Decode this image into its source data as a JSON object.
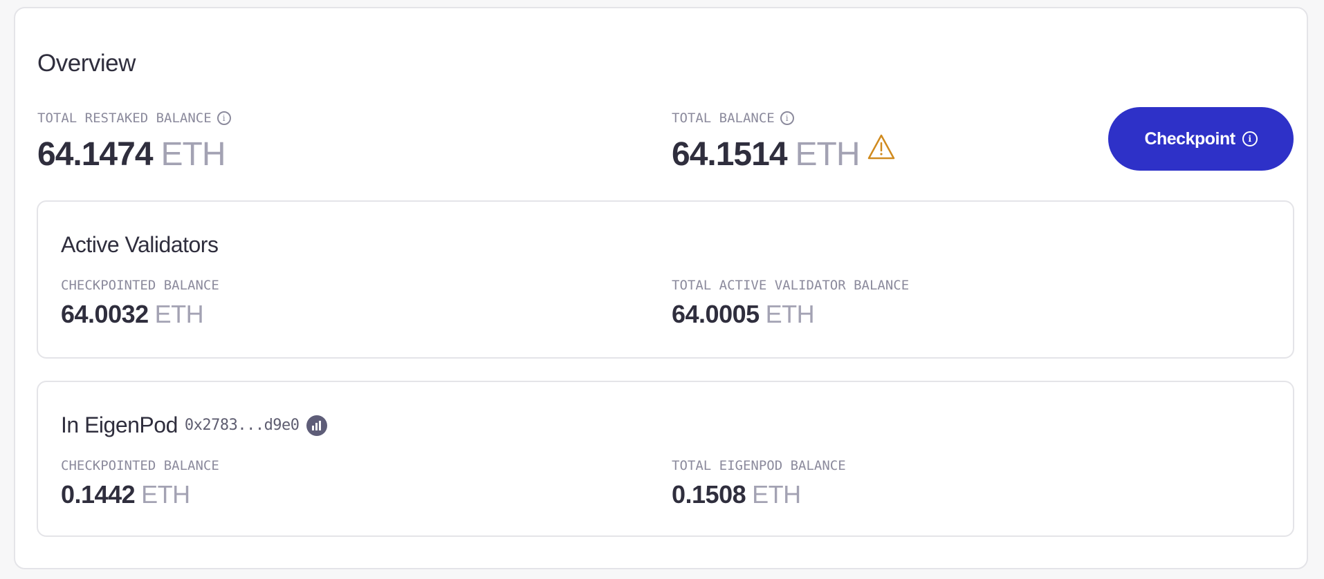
{
  "overview": {
    "title": "Overview",
    "total_restaked": {
      "label": "TOTAL RESTAKED BALANCE",
      "value": "64.1474",
      "unit": "ETH"
    },
    "total_balance": {
      "label": "TOTAL BALANCE",
      "value": "64.1514",
      "unit": "ETH",
      "warning_icon": "warning-triangle-icon",
      "warning_color": "#d08a1e"
    },
    "checkpoint_button": {
      "label": "Checkpoint",
      "color": "#2e31c8"
    }
  },
  "active_validators": {
    "title": "Active Validators",
    "checkpointed": {
      "label": "CHECKPOINTED BALANCE",
      "value": "64.0032",
      "unit": "ETH"
    },
    "total_active": {
      "label": "TOTAL ACTIVE VALIDATOR BALANCE",
      "value": "64.0005",
      "unit": "ETH"
    }
  },
  "eigenpod": {
    "title": "In EigenPod",
    "address": "0x2783...d9e0",
    "explorer_icon": "block-explorer-icon",
    "checkpointed": {
      "label": "CHECKPOINTED BALANCE",
      "value": "0.1442",
      "unit": "ETH"
    },
    "total": {
      "label": "TOTAL EIGENPOD BALANCE",
      "value": "0.1508",
      "unit": "ETH"
    }
  },
  "info_glyph": "i"
}
